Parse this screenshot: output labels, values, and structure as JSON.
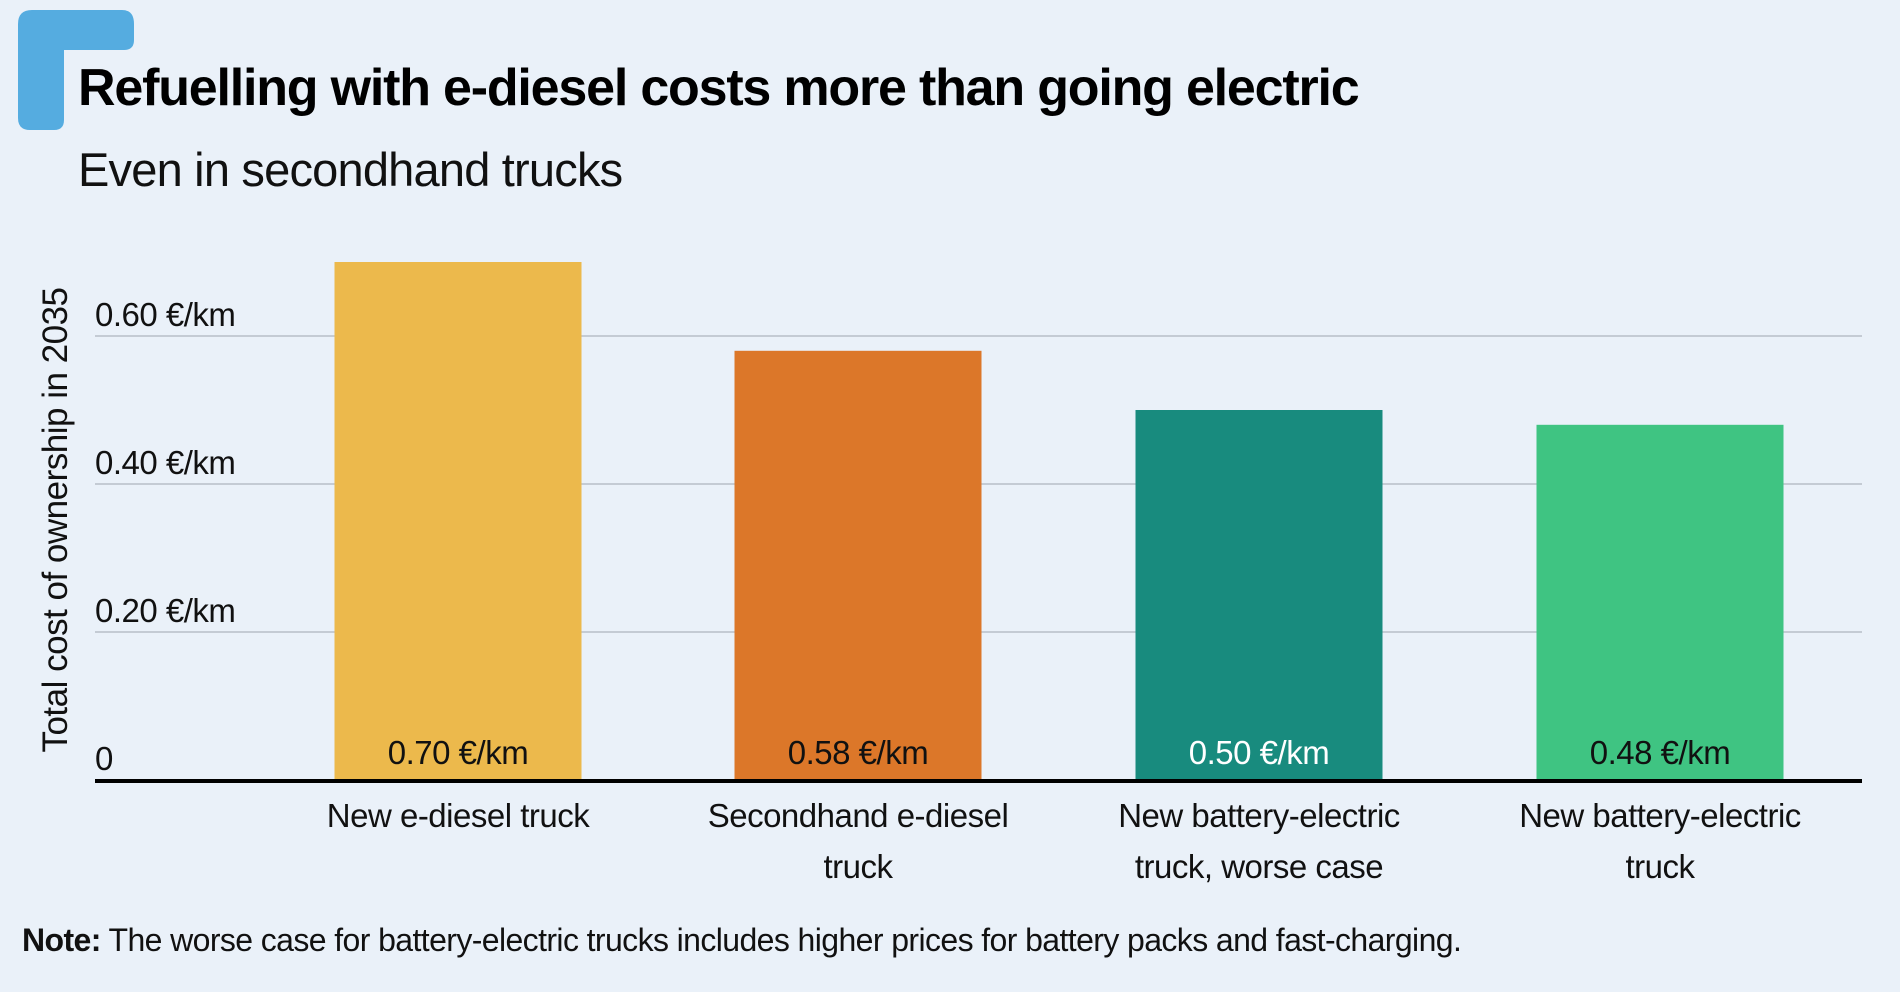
{
  "title": "Refuelling with e-diesel costs more than going electric",
  "subtitle": "Even in secondhand trucks",
  "note": {
    "label": "Note:",
    "text": " The worse case for battery-electric trucks includes higher prices for battery packs and fast-charging."
  },
  "colors": {
    "background": "#eaf1f9",
    "accent": "#55ace0",
    "gridline": "#c4cbd4",
    "axis": "#000000"
  },
  "chart_data": {
    "type": "bar",
    "title": "Refuelling with e-diesel costs more than going electric",
    "subtitle": "Even in secondhand trucks",
    "xlabel": "",
    "ylabel": "Total cost of ownership in 2035",
    "ylim": [
      0,
      0.72
    ],
    "grid": true,
    "yticks": [
      {
        "value": 0,
        "label": "0"
      },
      {
        "value": 0.2,
        "label": "0.20 €/km"
      },
      {
        "value": 0.4,
        "label": "0.40 €/km"
      },
      {
        "value": 0.6,
        "label": "0.60 €/km"
      }
    ],
    "categories": [
      [
        "New e-diesel truck"
      ],
      [
        "Secondhand e-diesel",
        "truck"
      ],
      [
        "New battery-electric",
        "truck, worse case"
      ],
      [
        "New battery-electric",
        "truck"
      ]
    ],
    "values": [
      0.7,
      0.58,
      0.5,
      0.48
    ],
    "data_labels": [
      "0.70 €/km",
      "0.58 €/km",
      "0.50 €/km",
      "0.48 €/km"
    ],
    "bar_colors": [
      "#ecb94c",
      "#dc7729",
      "#188b7e",
      "#3fc482"
    ],
    "label_colors": [
      "#111111",
      "#111111",
      "#ffffff",
      "#111111"
    ],
    "unit": "€/km"
  }
}
